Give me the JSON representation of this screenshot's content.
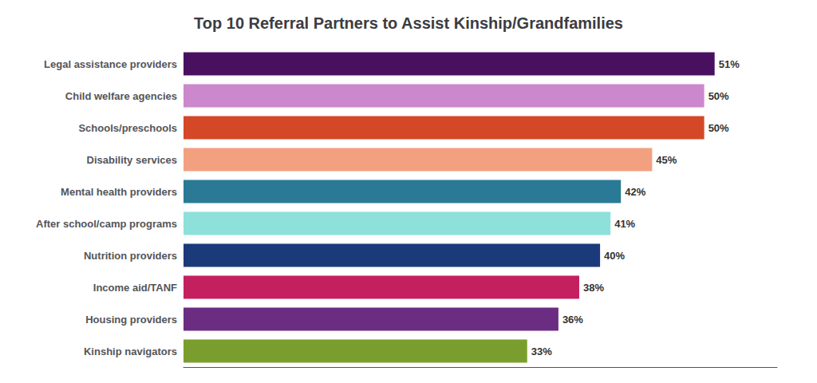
{
  "chart_data": {
    "type": "bar",
    "title": "Top 10 Referral Partners to Assist Kinship/Grandfamilies",
    "orientation": "horizontal",
    "categories": [
      "Kinship navigators",
      "Housing providers",
      "Income aid/TANF",
      "Nutrition providers",
      "After school/camp programs",
      "Mental health providers",
      "Disability services",
      "Schools/preschools",
      "Child welfare agencies",
      "Legal assistance providers"
    ],
    "values": [
      33,
      36,
      38,
      40,
      41,
      42,
      45,
      50,
      50,
      51
    ],
    "value_labels": [
      "33%",
      "36%",
      "38%",
      "40%",
      "41%",
      "42%",
      "45%",
      "50%",
      "50%",
      "51%"
    ],
    "data_labels": true,
    "colors": [
      "#7a9e2e",
      "#6b2d82",
      "#c42060",
      "#1a3a7a",
      "#8ee0da",
      "#2a7a96",
      "#f2a080",
      "#d44828",
      "#cc88cc",
      "#4a1060"
    ],
    "xlim": [
      0,
      57
    ],
    "grid": false,
    "tick_labels": "y"
  }
}
